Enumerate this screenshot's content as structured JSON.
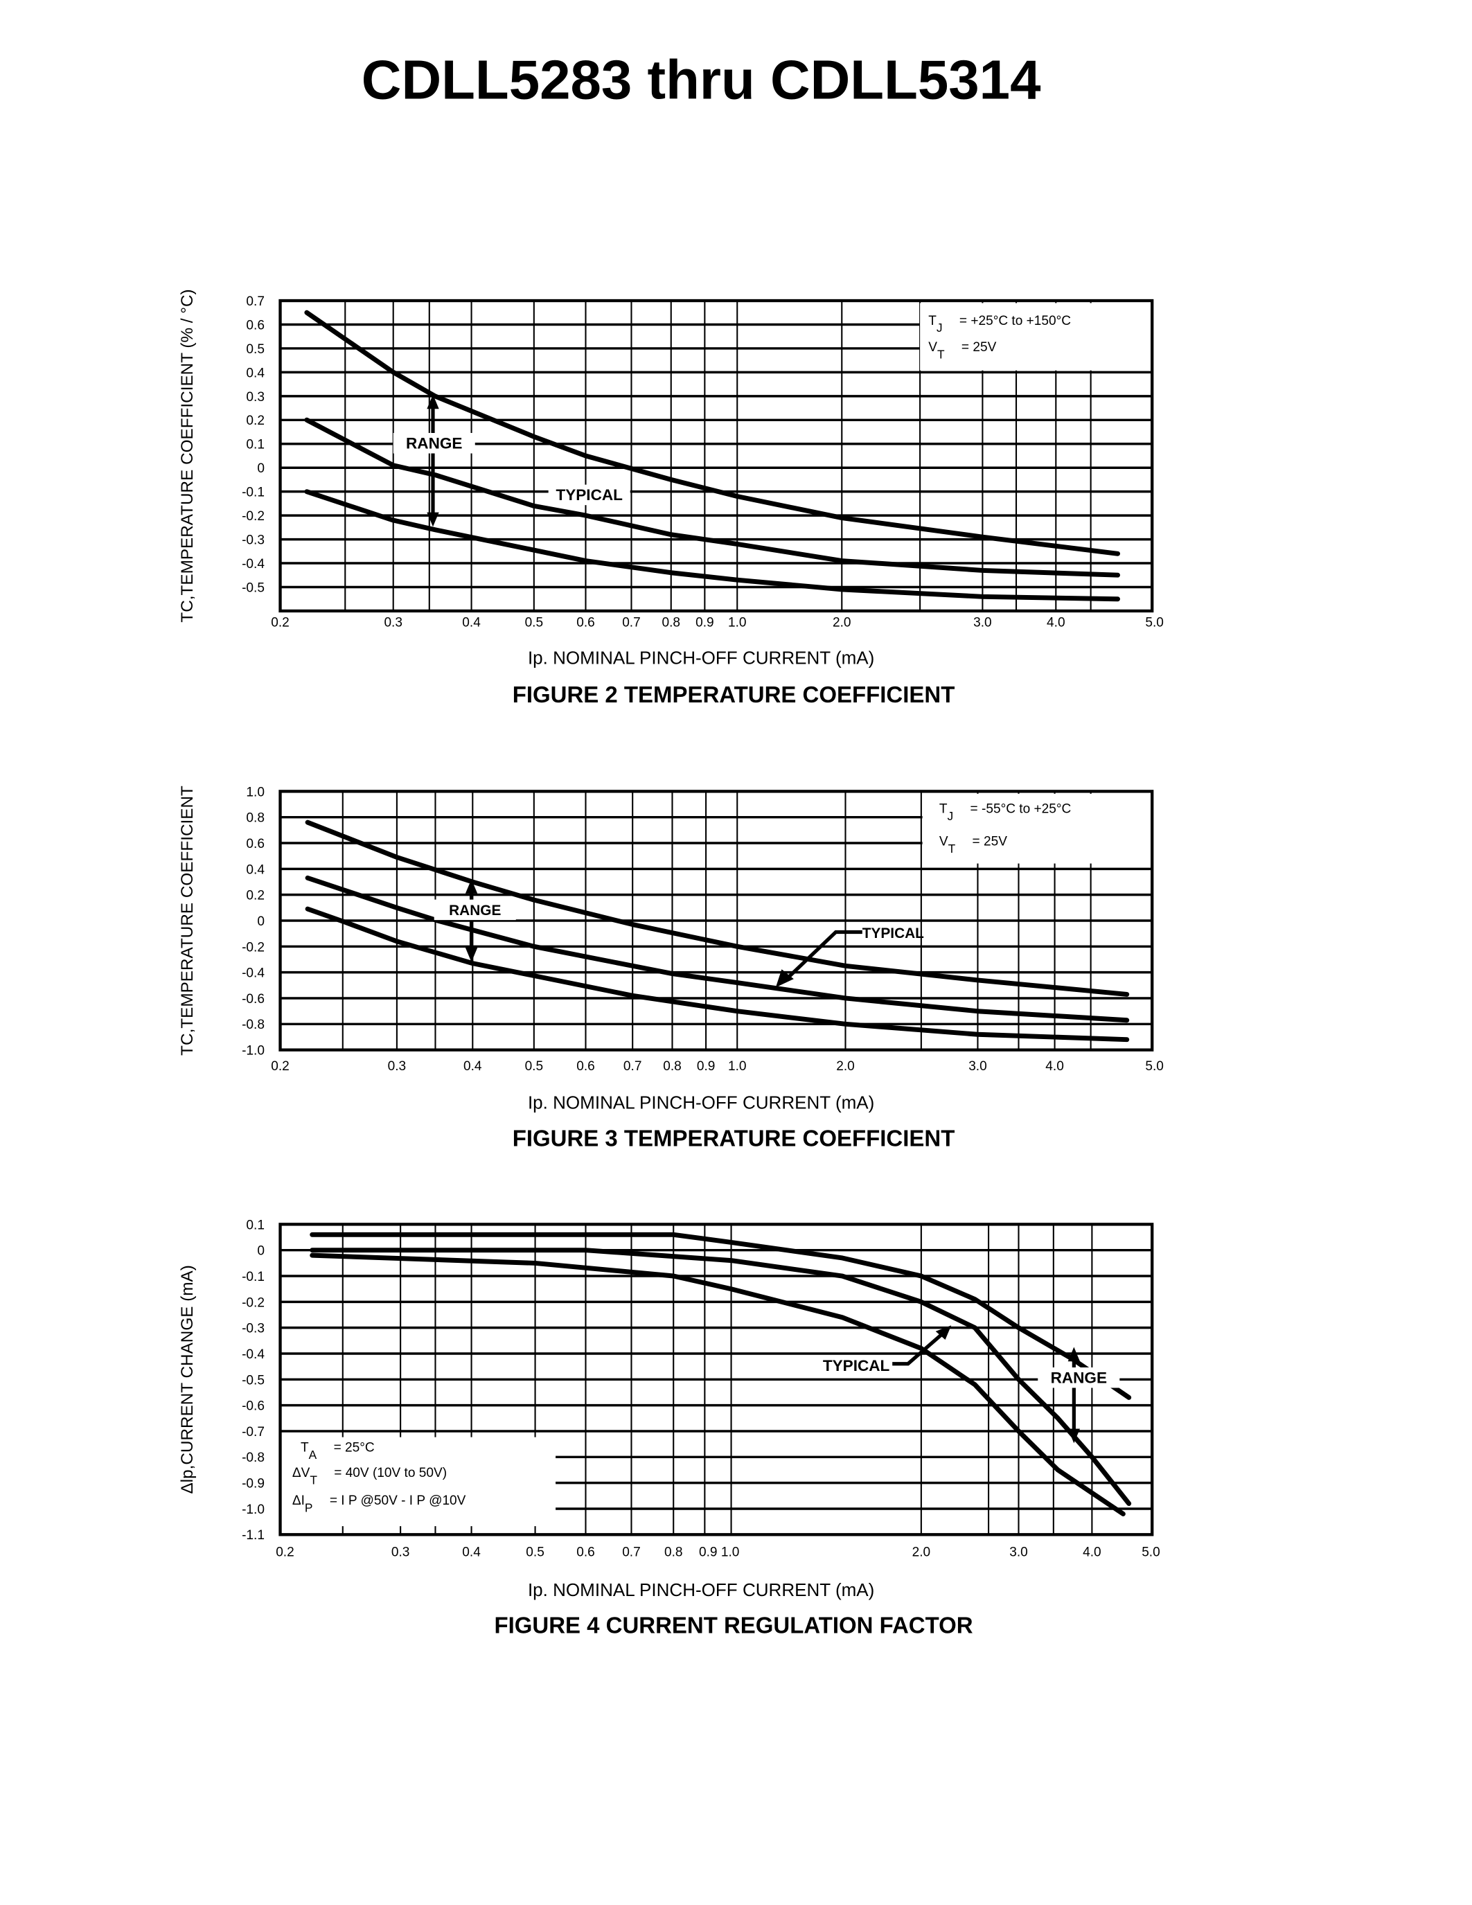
{
  "page": {
    "title": "CDLL5283 thru CDLL5314"
  },
  "chart_data": [
    {
      "type": "line",
      "title": "FIGURE 2 TEMPERATURE COEFFICIENT",
      "xlabel": "Ip. NOMINAL PINCH-OFF CURRENT (mA)",
      "ylabel": "TC,TEMPERATURE COEFFICIENT (% / °C)",
      "xticks": [
        "0.2",
        "0.3",
        "0.4",
        "0.5",
        "0.6",
        "0.7",
        "0.8",
        "0.9",
        "1.0",
        "2.0",
        "3.0",
        "4.0",
        "5.0"
      ],
      "yticks": [
        "0.7",
        "0.6",
        "0.5",
        "0.4",
        "0.3",
        "0.2",
        "0.1",
        "0",
        "-0.1",
        "-0.2",
        "-0.3",
        "-0.4",
        "-0.5"
      ],
      "xlim": [
        0.2,
        5.0
      ],
      "ylim": [
        -0.6,
        0.7
      ],
      "grid": true,
      "legend": {
        "placement": "top-right",
        "lines": [
          [
            "T",
            "J",
            "= +25°C to +150°C"
          ],
          [
            "V",
            "T",
            "= 25V"
          ]
        ]
      },
      "annotations": {
        "range": "RANGE",
        "typical": "TYPICAL"
      },
      "series": [
        {
          "x": [
            0.22,
            0.3,
            0.35,
            0.5,
            0.6,
            0.8,
            1.0,
            2.0,
            3.0,
            4.6
          ],
          "y": [
            0.65,
            0.4,
            0.3,
            0.13,
            0.05,
            -0.05,
            -0.12,
            -0.21,
            -0.29,
            -0.36
          ]
        },
        {
          "x": [
            0.22,
            0.3,
            0.35,
            0.5,
            0.6,
            0.8,
            1.0,
            2.0,
            3.0,
            4.6
          ],
          "y": [
            0.2,
            0.01,
            -0.03,
            -0.16,
            -0.2,
            -0.28,
            -0.32,
            -0.39,
            -0.43,
            -0.45
          ]
        },
        {
          "x": [
            0.22,
            0.3,
            0.35,
            0.6,
            0.8,
            1.0,
            2.0,
            3.0,
            4.6
          ],
          "y": [
            -0.1,
            -0.22,
            -0.26,
            -0.39,
            -0.44,
            -0.47,
            -0.51,
            -0.54,
            -0.55
          ]
        }
      ]
    },
    {
      "type": "line",
      "title": "FIGURE 3 TEMPERATURE COEFFICIENT",
      "xlabel": "Ip. NOMINAL PINCH-OFF CURRENT (mA)",
      "ylabel": "TC,TEMPERATURE COEFFICIENT",
      "xticks": [
        "0.2",
        "0.3",
        "0.4",
        "0.5",
        "0.6",
        "0.7",
        "0.8",
        "0.9",
        "1.0",
        "2.0",
        "3.0",
        "4.0",
        "5.0"
      ],
      "yticks": [
        "1.0",
        "0.8",
        "0.6",
        "0.4",
        "0.2",
        "0",
        "-0.2",
        "-0.4",
        "-0.6",
        "-0.8",
        "-1.0"
      ],
      "xlim": [
        0.2,
        5.0
      ],
      "ylim": [
        -1.0,
        1.0
      ],
      "grid": true,
      "legend": {
        "placement": "top-right",
        "lines": [
          [
            "T",
            "J",
            "= -55°C to +25°C"
          ],
          [
            "V",
            "T",
            "= 25V"
          ]
        ]
      },
      "annotations": {
        "range": "RANGE",
        "typical": "TYPICAL"
      },
      "series": [
        {
          "x": [
            0.22,
            0.3,
            0.4,
            0.5,
            0.7,
            1.0,
            2.0,
            3.0,
            4.7
          ],
          "y": [
            0.76,
            0.49,
            0.3,
            0.16,
            -0.03,
            -0.2,
            -0.35,
            -0.46,
            -0.57
          ]
        },
        {
          "x": [
            0.22,
            0.3,
            0.35,
            0.5,
            0.8,
            1.0,
            2.0,
            3.0,
            4.7
          ],
          "y": [
            0.33,
            0.1,
            0.0,
            -0.2,
            -0.41,
            -0.48,
            -0.6,
            -0.7,
            -0.77
          ]
        },
        {
          "x": [
            0.22,
            0.25,
            0.3,
            0.4,
            0.7,
            1.0,
            2.0,
            3.0,
            4.7
          ],
          "y": [
            0.09,
            -0.01,
            -0.16,
            -0.33,
            -0.58,
            -0.7,
            -0.8,
            -0.88,
            -0.92
          ]
        }
      ]
    },
    {
      "type": "line",
      "title": "FIGURE 4 CURRENT REGULATION FACTOR",
      "xlabel": "Ip. NOMINAL PINCH-OFF CURRENT (mA)",
      "ylabel": "Δlp,CURRENT CHANGE (mA)",
      "xticks": [
        "0.2",
        "0.3",
        "0.4",
        "0.5",
        "0.6",
        "0.7",
        "0.8",
        "0.9 1.0",
        "2.0",
        "3.0",
        "4.0",
        "5.0"
      ],
      "yticks": [
        "0.1",
        "0",
        "-0.1",
        "-0.2",
        "-0.3",
        "-0.4",
        "-0.5",
        "-0.6",
        "-0.7",
        "-0.8",
        "-0.9",
        "-1.0",
        "-1.1"
      ],
      "xlim": [
        0.2,
        5.0
      ],
      "ylim": [
        -1.1,
        0.1
      ],
      "grid": true,
      "legend": {
        "placement": "bottom-left",
        "lines": [
          [
            "T",
            "A",
            "= 25°C"
          ],
          [
            "ΔV",
            "T",
            "= 40V (10V to 50V)"
          ],
          [
            "ΔI",
            "P",
            "= I P @50V - I P @10V"
          ]
        ]
      },
      "annotations": {
        "range": "RANGE",
        "typical": "TYPICAL"
      },
      "series": [
        {
          "x": [
            0.22,
            0.5,
            0.8,
            1.0,
            1.5,
            2.0,
            2.5,
            3.0,
            3.7,
            4.6
          ],
          "y": [
            0.06,
            0.06,
            0.06,
            0.03,
            -0.03,
            -0.1,
            -0.19,
            -0.3,
            -0.42,
            -0.57
          ]
        },
        {
          "x": [
            0.22,
            0.6,
            1.0,
            1.5,
            2.0,
            2.5,
            3.0,
            3.5,
            4.0,
            4.6
          ],
          "y": [
            0,
            0,
            -0.04,
            -0.1,
            -0.2,
            -0.3,
            -0.5,
            -0.65,
            -0.8,
            -0.98
          ]
        },
        {
          "x": [
            0.22,
            0.5,
            0.8,
            1.0,
            1.5,
            2.0,
            2.5,
            3.0,
            3.5,
            4.5
          ],
          "y": [
            -0.02,
            -0.05,
            -0.1,
            -0.15,
            -0.26,
            -0.38,
            -0.52,
            -0.7,
            -0.85,
            -1.02
          ]
        }
      ]
    }
  ]
}
